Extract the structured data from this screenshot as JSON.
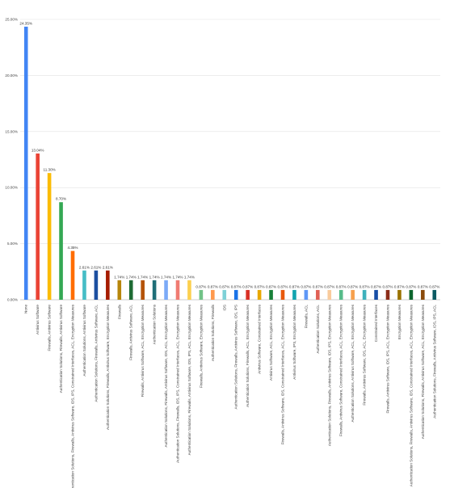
{
  "chart_data": {
    "type": "bar",
    "categories": [
      "None",
      "Antivirus Software",
      "Firewalls, Antivirus Software",
      "Authentication Solutions, Firewalls, Antivirus Software",
      "Authentication Solutions, Firewalls, Antivirus Software, IDS, IPS, Constrained Interfaces, ACL, Encryption Measures",
      "Authentication Solutions, Antivirus Software",
      "Authentication Solutions, Firewalls, Antivirus Software, ACL",
      "Authentication Solutions, Firewalls, Antivirus Software, Encryption Measures",
      "Firewalls",
      "Firewalls, Antivirus Software, ACL",
      "Firewalls, Antivirus Software, ACL, Encryption Measures",
      "Authentication Solutions",
      "Authentication Solutions, Firewalls, Antivirus Software, IDS, ACL, Encryption Measures",
      "Authentication Solutions, Firewalls, IDS, IPS, Constrained Interfaces, ACL, Encryption Measures",
      "Authentication Solutions, Firewalls, Antivirus Software, IDS, IPS, ACL, Encryption Measures",
      "Firewalls, Antivirus Software, Encryption Measures",
      "Authentication Solutions, Firewalls",
      "IDS",
      "Authentication Solutions, Firewalls, Antivirus Software, IDS, IPS",
      "Authentication Solutions, Firewalls, ACL, Encryption Measures",
      "Antivirus Software, Constrained Interfaces",
      "Antivirus Software, ACL, Encryption Measures",
      "Firewalls, Antivirus Software, IDS, Constrained Interfaces, ACL, Encryption Measures",
      "Antivirus Software, IPS, Encryption Measures",
      "Firewalls, ACL",
      "Authentication Solutions, ACL",
      "Authentication Solutions, Firewalls, Antivirus Software, IDS, IPS, Encryption Measures",
      "Firewalls, Antivirus Software, Constrained Interfaces, ACL, Encryption Measures",
      "Authentication Solutions, Antivirus Software, ACL, Encryption Measures",
      "Firewalls, Antivirus Software, IDS, ACL, Encryption Measures",
      "Constrained Interfaces",
      "Firewalls, Antivirus Software, IDS, IPS, ACL, Encryption Measures",
      "Encryption Measures",
      "Authentication Solutions, Firewalls, Antivirus Software, IDS, Constrained Interfaces, ACL, Encryption Measures",
      "Authentication Solutions, Firewalls, Antivirus Software, ACL, Encryption Measures",
      "Authentication Solutions, Firewalls, Antivirus Software, IDS, IPS, ACL"
    ],
    "values": [
      24.35,
      13.04,
      11.3,
      8.7,
      4.35,
      2.61,
      2.61,
      2.61,
      1.74,
      1.74,
      1.74,
      1.74,
      1.74,
      1.74,
      1.74,
      0.87,
      0.87,
      0.87,
      0.87,
      0.87,
      0.87,
      0.87,
      0.87,
      0.87,
      0.87,
      0.87,
      0.87,
      0.87,
      0.87,
      0.87,
      0.87,
      0.87,
      0.87,
      0.87,
      0.87,
      0.87
    ],
    "value_labels": [
      "24.35%",
      "13.04%",
      "11.30%",
      "8.70%",
      "4.35%",
      "2.61%",
      "2.61%",
      "2.61%",
      "1.74%",
      "1.74%",
      "1.74%",
      "1.74%",
      "1.74%",
      "1.74%",
      "1.74%",
      "0.87%",
      "0.87%",
      "0.87%",
      "0.87%",
      "0.87%",
      "0.87%",
      "0.87%",
      "0.87%",
      "0.87%",
      "0.87%",
      "0.87%",
      "0.87%",
      "0.87%",
      "0.87%",
      "0.87%",
      "0.87%",
      "0.87%",
      "0.87%",
      "0.87%",
      "0.87%",
      "0.87%"
    ],
    "colors": [
      "#4285f4",
      "#ea4335",
      "#fbbc04",
      "#34a853",
      "#ff6d01",
      "#46bdc6",
      "#1c4fa0",
      "#a61c00",
      "#b7860b",
      "#1e6b34",
      "#b45309",
      "#1f6f78",
      "#7baaf7",
      "#f07b72",
      "#fcd04f",
      "#71c287",
      "#ff994d",
      "#7ed1d7",
      "#1a73e8",
      "#d93025",
      "#e8a800",
      "#188038",
      "#e8590c",
      "#12a4af",
      "#5e97f6",
      "#e06055",
      "#f9cb9c",
      "#57bb8a",
      "#f6a04d",
      "#3eb1bc",
      "#174ea6",
      "#8c2d19",
      "#9a7300",
      "#0d652d",
      "#8a4a0b",
      "#0b5a62"
    ],
    "ylim": [
      0,
      25
    ],
    "yticks": [
      {
        "value": 0,
        "label": "0.00%"
      },
      {
        "value": 5,
        "label": "5.00%"
      },
      {
        "value": 10,
        "label": "10.00%"
      },
      {
        "value": 15,
        "label": "15.00%"
      },
      {
        "value": 20,
        "label": "20.00%"
      },
      {
        "value": 25,
        "label": "25.00%"
      }
    ],
    "grid": true
  }
}
